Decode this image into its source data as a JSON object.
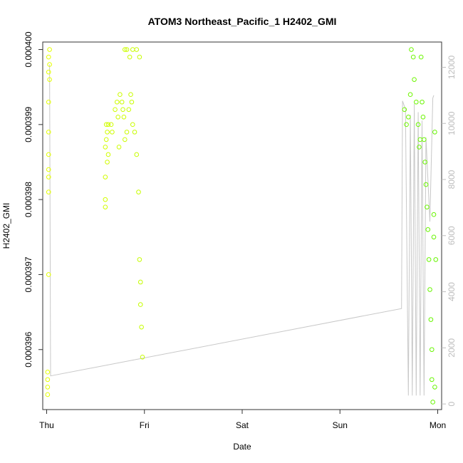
{
  "chart_data": {
    "type": "scatter",
    "title": "ATOM3 Northeast_Pacific_1 H2402_GMI",
    "xlabel": "Date",
    "ylabel": "H2402_GMI",
    "x_ticks": [
      "Thu",
      "Fri",
      "Sat",
      "Sun",
      "Mon"
    ],
    "xlim": [
      -0.04,
      4.04
    ],
    "ylim": [
      0.0003952,
      0.0004001
    ],
    "y_ticks": [
      0.000396,
      0.000397,
      0.000398,
      0.000399,
      0.0004
    ],
    "y_tick_labels": [
      "0.000396",
      "0.000397",
      "0.000398",
      "0.000399",
      "0.000400"
    ],
    "y2_ticks": [
      0,
      2000,
      4000,
      6000,
      8000,
      10000,
      12000
    ],
    "y2_tick_labels": [
      "0",
      "2000",
      "4000",
      "6000",
      "8000",
      "10000",
      "12000"
    ],
    "y2lim": [
      -200,
      12900
    ],
    "grid": false,
    "series": [
      {
        "marker": "open-circle",
        "points": [
          [
            0.01,
            0.0003956
          ],
          [
            0.01,
            0.0003955
          ],
          [
            0.01,
            0.0003954
          ],
          [
            0.01,
            0.0003957
          ],
          [
            0.02,
            0.0003999
          ],
          [
            0.02,
            0.0003997
          ],
          [
            0.02,
            0.0003993
          ],
          [
            0.02,
            0.0003989
          ],
          [
            0.02,
            0.0003986
          ],
          [
            0.02,
            0.0003983
          ],
          [
            0.02,
            0.0003981
          ],
          [
            0.02,
            0.000397
          ],
          [
            0.02,
            0.0003984
          ],
          [
            0.03,
            0.0004
          ],
          [
            0.03,
            0.0003998
          ],
          [
            0.03,
            0.0003996
          ],
          [
            0.6,
            0.000398
          ],
          [
            0.6,
            0.0003979
          ],
          [
            0.6,
            0.0003983
          ],
          [
            0.6,
            0.0003987
          ],
          [
            0.61,
            0.000399
          ],
          [
            0.61,
            0.0003988
          ],
          [
            0.62,
            0.0003985
          ],
          [
            0.62,
            0.0003989
          ],
          [
            0.63,
            0.0003986
          ],
          [
            0.63,
            0.000399
          ],
          [
            0.66,
            0.000399
          ],
          [
            0.67,
            0.0003989
          ],
          [
            0.7,
            0.0003992
          ],
          [
            0.72,
            0.0003993
          ],
          [
            0.73,
            0.0003991
          ],
          [
            0.74,
            0.0003987
          ],
          [
            0.75,
            0.0003994
          ],
          [
            0.77,
            0.0003993
          ],
          [
            0.78,
            0.0003992
          ],
          [
            0.79,
            0.0003991
          ],
          [
            0.8,
            0.0003988
          ],
          [
            0.82,
            0.0003989
          ],
          [
            0.84,
            0.0003992
          ],
          [
            0.86,
            0.0003994
          ],
          [
            0.87,
            0.0003993
          ],
          [
            0.88,
            0.000399
          ],
          [
            0.9,
            0.0003989
          ],
          [
            0.92,
            0.0003986
          ],
          [
            0.94,
            0.0003981
          ],
          [
            0.95,
            0.0003972
          ],
          [
            0.96,
            0.0003969
          ],
          [
            0.96,
            0.0003966
          ],
          [
            0.97,
            0.0003963
          ],
          [
            0.98,
            0.0003959
          ],
          [
            0.8,
            0.0004
          ],
          [
            0.82,
            0.0004
          ],
          [
            0.85,
            0.0003999
          ],
          [
            0.88,
            0.0004
          ],
          [
            0.92,
            0.0004
          ],
          [
            0.95,
            0.0003999
          ],
          [
            3.66,
            0.0003992
          ],
          [
            3.68,
            0.000399
          ],
          [
            3.7,
            0.0003991
          ],
          [
            3.72,
            0.0003994
          ],
          [
            3.73,
            0.0004
          ],
          [
            3.75,
            0.0003999
          ],
          [
            3.76,
            0.0003996
          ],
          [
            3.78,
            0.0003993
          ],
          [
            3.8,
            0.000399
          ],
          [
            3.81,
            0.0003987
          ],
          [
            3.82,
            0.0003988
          ],
          [
            3.83,
            0.0003999
          ],
          [
            3.84,
            0.0003993
          ],
          [
            3.85,
            0.0003991
          ],
          [
            3.86,
            0.0003988
          ],
          [
            3.87,
            0.0003985
          ],
          [
            3.88,
            0.0003982
          ],
          [
            3.89,
            0.0003979
          ],
          [
            3.9,
            0.0003976
          ],
          [
            3.91,
            0.0003972
          ],
          [
            3.92,
            0.0003968
          ],
          [
            3.93,
            0.0003964
          ],
          [
            3.94,
            0.000396
          ],
          [
            3.94,
            0.0003956
          ],
          [
            3.95,
            0.0003953
          ],
          [
            3.96,
            0.0003975
          ],
          [
            3.96,
            0.0003978
          ],
          [
            3.97,
            0.0003989
          ],
          [
            3.98,
            0.0003972
          ],
          [
            3.97,
            0.0003955
          ]
        ]
      },
      {
        "axis": "right",
        "line_color": "#c8c8c8",
        "points": [
          [
            0.03,
            12100
          ],
          [
            0.04,
            1000
          ],
          [
            3.63,
            3400
          ],
          [
            3.64,
            10800
          ],
          [
            3.67,
            10500
          ],
          [
            3.7,
            300
          ],
          [
            3.72,
            10300
          ],
          [
            3.74,
            300
          ],
          [
            3.76,
            10700
          ],
          [
            3.78,
            300
          ],
          [
            3.8,
            10400
          ],
          [
            3.82,
            300
          ],
          [
            3.84,
            10100
          ],
          [
            3.86,
            300
          ],
          [
            3.88,
            9500
          ],
          [
            3.92,
            6500
          ],
          [
            3.95,
            10900
          ],
          [
            3.96,
            11000
          ]
        ]
      }
    ]
  }
}
